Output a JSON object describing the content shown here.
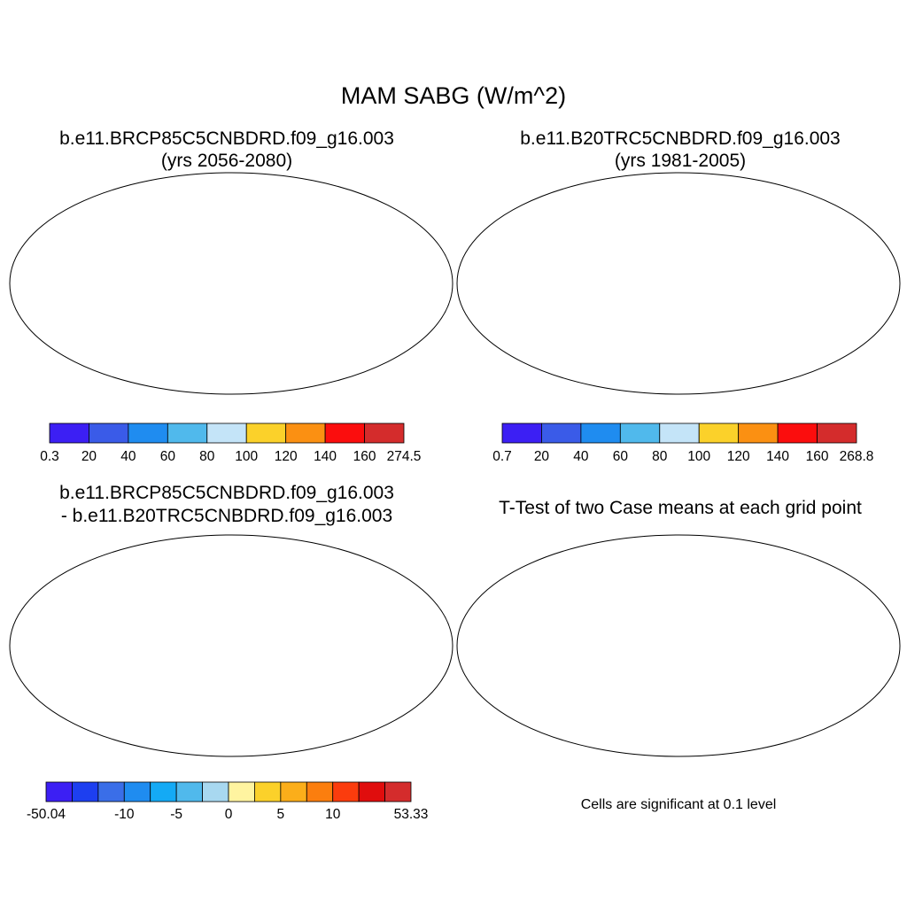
{
  "figure": {
    "title": "MAM SABG (W/m^2)"
  },
  "panels": [
    {
      "id": "future",
      "title_line1": "b.e11.BRCP85C5CNBDRD.f09_g16.003",
      "title_line2": "(yrs 2056-2080)",
      "colorbar": {
        "labels": [
          "0.3",
          "20",
          "40",
          "60",
          "80",
          "100",
          "120",
          "140",
          "160",
          "274.5"
        ],
        "colors": [
          "#3c1ff4",
          "#3a5be8",
          "#1f8cf0",
          "#50b9ec",
          "#c4e4f8",
          "#fbd12a",
          "#fb9012",
          "#fb0d0d",
          "#d42c2c"
        ]
      }
    },
    {
      "id": "historical",
      "title_line1": "b.e11.B20TRC5CNBDRD.f09_g16.003",
      "title_line2": "(yrs 1981-2005)",
      "colorbar": {
        "labels": [
          "0.7",
          "20",
          "40",
          "60",
          "80",
          "100",
          "120",
          "140",
          "160",
          "268.8"
        ],
        "colors": [
          "#3c1ff4",
          "#3a5be8",
          "#1f8cf0",
          "#50b9ec",
          "#c4e4f8",
          "#fbd12a",
          "#fb9012",
          "#fb0d0d",
          "#d42c2c"
        ]
      }
    },
    {
      "id": "difference",
      "title_line1": "b.e11.BRCP85C5CNBDRD.f09_g16.003",
      "title_line2": "- b.e11.B20TRC5CNBDRD.f09_g16.003",
      "colorbar": {
        "labels": [
          "-50.04",
          "-10",
          "-5",
          "0",
          "5",
          "10",
          "53.33"
        ],
        "colors": [
          "#3c1ff4",
          "#1d3ff0",
          "#3a6ee8",
          "#1f8cf0",
          "#14aaf5",
          "#50b9ec",
          "#a8d8f0",
          "#fff4a0",
          "#fbd12a",
          "#fbae1a",
          "#fb7e0e",
          "#fb3c0d",
          "#e00d0d",
          "#d42c2c"
        ]
      }
    },
    {
      "id": "ttest",
      "title_line1": "T-Test of two Case means at each grid point",
      "note": "Cells are significant at 0.1 level",
      "significant_color": "#ee0d0d"
    }
  ]
}
